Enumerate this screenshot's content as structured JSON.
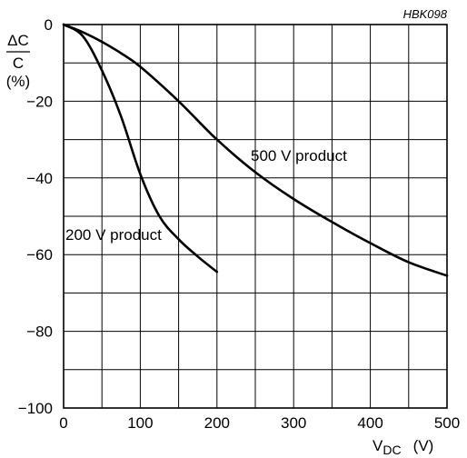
{
  "figure_code": "HBK098",
  "chart_data": {
    "type": "line",
    "ylabel": {
      "numerator": "ΔC",
      "denominator": "C",
      "unit": "(%)"
    },
    "xlabel": {
      "main": "V",
      "subscript": "DC",
      "unit": "(V)"
    },
    "xlim": [
      0,
      500
    ],
    "ylim": [
      -100,
      0
    ],
    "x_ticks": [
      0,
      100,
      200,
      300,
      400,
      500
    ],
    "y_ticks": [
      0,
      -20,
      -40,
      -60,
      -80,
      -100
    ],
    "x_tick_labels": [
      "0",
      "100",
      "200",
      "300",
      "400",
      "500"
    ],
    "y_tick_labels": [
      "0",
      "−20",
      "−40",
      "−60",
      "−80",
      "−100"
    ],
    "grid": true,
    "x_grid_step": 50,
    "y_grid_step": 10,
    "series": [
      {
        "name": "500 V product",
        "x": [
          0,
          25,
          50,
          75,
          100,
          150,
          200,
          250,
          300,
          350,
          400,
          450,
          500
        ],
        "y": [
          0,
          -2,
          -4.5,
          -7.5,
          -11,
          -20,
          -30,
          -38.5,
          -45.5,
          -51.5,
          -57,
          -62,
          -65.5
        ]
      },
      {
        "name": "200 V product",
        "x": [
          0,
          25,
          50,
          75,
          100,
          125,
          150,
          175,
          200
        ],
        "y": [
          0,
          -3,
          -12,
          -24,
          -39,
          -50,
          -56,
          -60.5,
          -64.5
        ]
      }
    ]
  }
}
